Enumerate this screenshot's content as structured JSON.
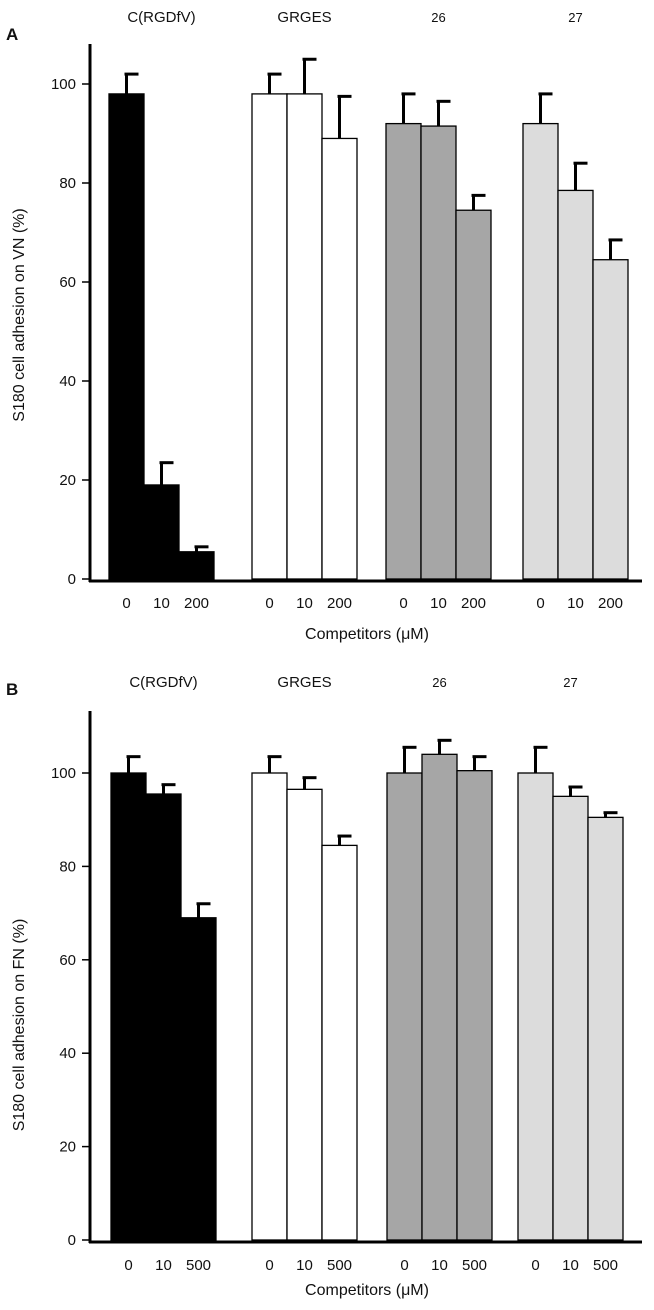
{
  "chart_data": [
    {
      "panel_label": "A",
      "type": "bar",
      "ylabel": "S180 cell adhesion on VN (%)",
      "xlabel": "Competitors (μM)",
      "ylim": [
        0,
        100
      ],
      "yticks": [
        "0",
        "20",
        "40",
        "60",
        "80",
        "100"
      ],
      "groups": [
        {
          "name": "C(RGDfV)",
          "fill": "#000000",
          "categories": [
            "0",
            "10",
            "200"
          ],
          "values": [
            98,
            19,
            5.5
          ],
          "errors": [
            4,
            4.5,
            1
          ]
        },
        {
          "name": "GRGES",
          "fill": "#ffffff",
          "categories": [
            "0",
            "10",
            "200"
          ],
          "values": [
            98,
            98,
            89
          ],
          "errors": [
            4,
            7,
            8.5
          ]
        },
        {
          "name": "26",
          "fill": "#a6a6a6",
          "categories": [
            "0",
            "10",
            "200"
          ],
          "values": [
            92,
            91.5,
            74.5
          ],
          "errors": [
            6,
            5,
            3
          ]
        },
        {
          "name": "27",
          "fill": "#dcdcdc",
          "categories": [
            "0",
            "10",
            "200"
          ],
          "values": [
            92,
            78.5,
            64.5
          ],
          "errors": [
            6,
            5.5,
            4
          ]
        }
      ]
    },
    {
      "panel_label": "B",
      "type": "bar",
      "ylabel": "S180 cell adhesion on FN (%)",
      "xlabel": "Competitors (μM)",
      "ylim": [
        0,
        100
      ],
      "yticks": [
        "0",
        "20",
        "40",
        "60",
        "80",
        "100"
      ],
      "groups": [
        {
          "name": "C(RGDfV)",
          "fill": "#000000",
          "categories": [
            "0",
            "10",
            "500"
          ],
          "values": [
            100,
            95.5,
            69
          ],
          "errors": [
            3.5,
            2,
            3
          ]
        },
        {
          "name": "GRGES",
          "fill": "#ffffff",
          "categories": [
            "0",
            "10",
            "500"
          ],
          "values": [
            100,
            96.5,
            84.5
          ],
          "errors": [
            3.5,
            2.5,
            2
          ]
        },
        {
          "name": "26",
          "fill": "#a6a6a6",
          "categories": [
            "0",
            "10",
            "500"
          ],
          "values": [
            100,
            104,
            100.5
          ],
          "errors": [
            5.5,
            3,
            3
          ]
        },
        {
          "name": "27",
          "fill": "#dcdcdc",
          "categories": [
            "0",
            "10",
            "500"
          ],
          "values": [
            100,
            95,
            90.5
          ],
          "errors": [
            5.5,
            2,
            1
          ]
        }
      ]
    }
  ]
}
